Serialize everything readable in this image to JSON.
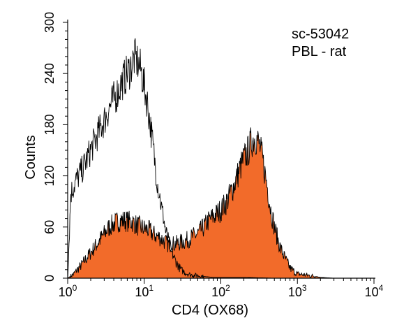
{
  "chart_data": {
    "type": "area",
    "annotations": [
      "sc-53042",
      "PBL - rat"
    ],
    "xlabel": "CD4 (OX68)",
    "ylabel": "Counts",
    "x_scale": "log10",
    "xlim": [
      1,
      10000
    ],
    "ylim": [
      0,
      300
    ],
    "y_ticks": [
      0,
      60,
      120,
      180,
      240,
      300
    ],
    "x_ticks": [
      {
        "value": 1,
        "base": "10",
        "exp": "0"
      },
      {
        "value": 10,
        "base": "10",
        "exp": "1"
      },
      {
        "value": 100,
        "base": "10",
        "exp": "2"
      },
      {
        "value": 1000,
        "base": "10",
        "exp": "3"
      },
      {
        "value": 10000,
        "base": "10",
        "exp": "4"
      }
    ],
    "grid": false,
    "series": [
      {
        "style": "outline",
        "color": "#000000",
        "x": [
          1,
          1.1,
          1.3,
          1.6,
          2,
          2.5,
          3,
          3.5,
          4,
          4.5,
          5,
          5.5,
          6,
          6.5,
          7,
          7.5,
          8,
          8.5,
          9,
          9.5,
          10,
          11,
          12,
          13,
          14,
          15,
          16,
          17,
          18,
          19,
          20,
          22,
          25,
          28,
          30,
          35,
          40,
          50,
          60,
          80,
          100,
          200,
          500,
          1000,
          10000
        ],
        "y": [
          0,
          100,
          115,
          130,
          150,
          170,
          185,
          200,
          210,
          218,
          228,
          235,
          240,
          245,
          253,
          258,
          255,
          250,
          245,
          235,
          225,
          205,
          180,
          155,
          130,
          110,
          95,
          80,
          70,
          55,
          48,
          35,
          22,
          14,
          10,
          6,
          4,
          3,
          2,
          1,
          1,
          1,
          0,
          0,
          0
        ]
      },
      {
        "style": "filled",
        "color": "#f26b2a",
        "x": [
          1,
          1.2,
          1.5,
          2,
          2.5,
          3,
          3.5,
          4,
          5,
          6,
          7,
          8,
          9,
          10,
          11,
          12,
          14,
          16,
          18,
          20,
          25,
          30,
          35,
          40,
          50,
          60,
          70,
          80,
          100,
          120,
          150,
          180,
          200,
          230,
          250,
          280,
          300,
          320,
          350,
          400,
          450,
          500,
          600,
          700,
          800,
          900,
          1000,
          1200,
          1500,
          2000,
          3000,
          10000
        ],
        "y": [
          0,
          5,
          15,
          30,
          42,
          52,
          60,
          64,
          68,
          67,
          66,
          62,
          60,
          58,
          57,
          55,
          50,
          48,
          44,
          40,
          40,
          42,
          44,
          47,
          52,
          60,
          68,
          72,
          80,
          90,
          110,
          130,
          140,
          150,
          160,
          165,
          162,
          155,
          140,
          110,
          80,
          60,
          35,
          22,
          12,
          8,
          5,
          4,
          3,
          1,
          0,
          0
        ]
      }
    ]
  }
}
